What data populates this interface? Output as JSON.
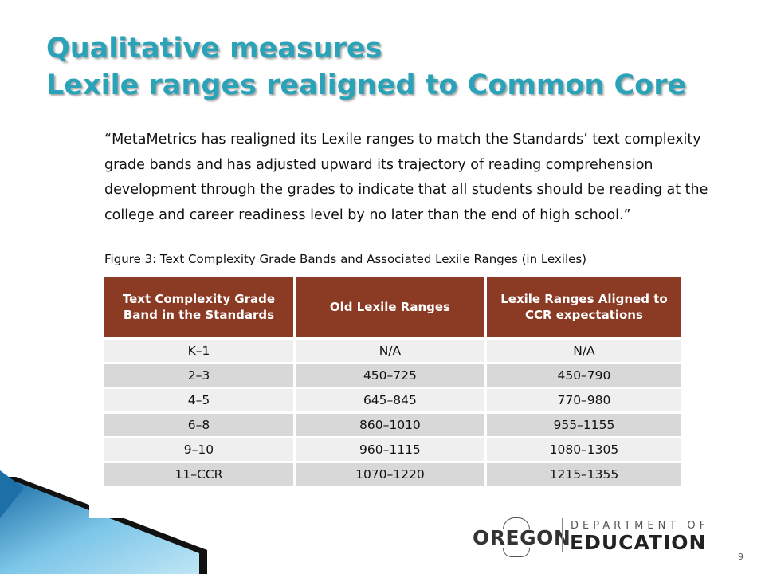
{
  "slide": {
    "title_line1": "Qualitative measures",
    "title_line2": "Lexile ranges realigned to Common Core",
    "quote": "“MetaMetrics has realigned its Lexile ranges to match the Standards’ text complexity grade bands and has adjusted upward its trajectory of reading comprehension development through the grades to indicate that all students should be reading at the college and career readiness level by no later than the end of high school.”",
    "figure_caption": "Figure 3: Text Complexity Grade Bands and Associated Lexile Ranges (in Lexiles)",
    "page_number": "9"
  },
  "table": {
    "headers": [
      "Text Complexity Grade Band in the Standards",
      "Old Lexile Ranges",
      "Lexile Ranges Aligned to CCR expectations"
    ],
    "rows": [
      [
        "K–1",
        "N/A",
        "N/A"
      ],
      [
        "2–3",
        "450–725",
        "450–790"
      ],
      [
        "4–5",
        "645–845",
        "770–980"
      ],
      [
        "6–8",
        "860–1010",
        "955–1155"
      ],
      [
        "9–10",
        "960–1115",
        "1080–1305"
      ],
      [
        "11–CCR",
        "1070–1220",
        "1215–1355"
      ]
    ]
  },
  "logo": {
    "state": "OREGON",
    "department": "DEPARTMENT OF",
    "agency": "EDUCATION"
  },
  "colors": {
    "title": "#2aa2b8",
    "table_header": "#8b3a24",
    "row_light": "#efefef",
    "row_dark": "#d8d8d8",
    "chevron_blue": "#2f8fc6"
  }
}
